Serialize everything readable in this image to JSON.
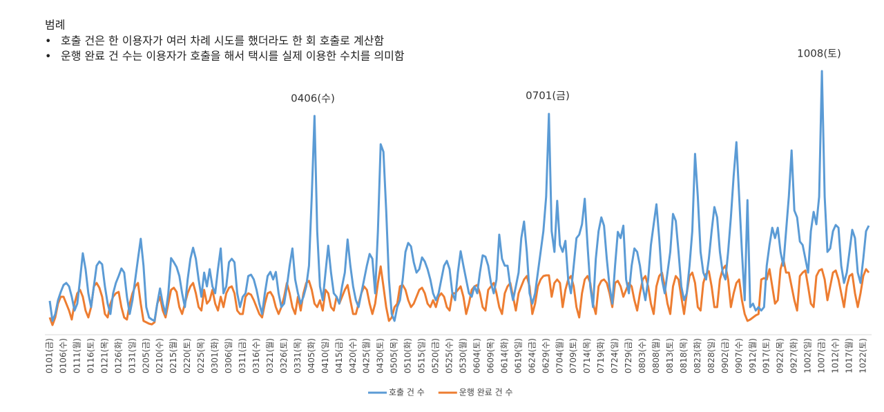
{
  "legend_notes": {
    "title": "범례",
    "items": [
      "호출 건은 한 이용자가 여러 차례 시도를 했더라도 한 회 호출로 계산함",
      "운행 완료 건 수는 이용자가 호출을 해서 택시를 실제 이용한 수치를 의미함"
    ]
  },
  "chart_data": {
    "type": "line",
    "annotations": [
      "0406(수)",
      "0701(금)",
      "1008(토)"
    ],
    "ylim": [
      0,
      400
    ],
    "categories": [
      "0101(금)",
      null,
      null,
      null,
      null,
      "0106(수)",
      null,
      null,
      null,
      null,
      "0111(월)",
      null,
      null,
      null,
      null,
      "0116(토)",
      null,
      null,
      null,
      null,
      "0121(목)",
      null,
      null,
      null,
      null,
      "0126(화)",
      null,
      null,
      null,
      null,
      "0131(일)",
      null,
      null,
      null,
      null,
      "0205(금)",
      null,
      null,
      null,
      null,
      "0210(수)",
      null,
      null,
      null,
      null,
      "0215(월)",
      null,
      null,
      null,
      null,
      "0220(토)",
      null,
      null,
      null,
      null,
      "0225(목)",
      null,
      null,
      null,
      null,
      "0301(화)",
      null,
      null,
      null,
      null,
      "0306(일)",
      null,
      null,
      null,
      null,
      "0311(금)",
      null,
      null,
      null,
      null,
      "0316(수)",
      null,
      null,
      null,
      null,
      "0321(월)",
      null,
      null,
      null,
      null,
      "0326(토)",
      null,
      null,
      null,
      null,
      "0331(목)",
      null,
      null,
      null,
      null,
      "0405(화)",
      null,
      null,
      null,
      null,
      "0410(일)",
      null,
      null,
      null,
      null,
      "0415(금)",
      null,
      null,
      null,
      null,
      "0420(수)",
      null,
      null,
      null,
      null,
      "0425(월)",
      null,
      null,
      null,
      null,
      "0430(토)",
      null,
      null,
      null,
      null,
      "0505(목)",
      null,
      null,
      null,
      null,
      "0510(화)",
      null,
      null,
      null,
      null,
      "0515(일)",
      null,
      null,
      null,
      null,
      "0520(금)",
      null,
      null,
      null,
      null,
      "0525(수)",
      null,
      null,
      null,
      null,
      "0530(월)",
      null,
      null,
      null,
      null,
      "0604(토)",
      null,
      null,
      null,
      null,
      "0609(목)",
      null,
      null,
      null,
      null,
      "0614(화)",
      null,
      null,
      null,
      null,
      "0619(일)",
      null,
      null,
      null,
      null,
      "0624(금)",
      null,
      null,
      null,
      null,
      "0629(수)",
      null,
      null,
      null,
      null,
      "0704(월)",
      null,
      null,
      null,
      null,
      "0709(토)",
      null,
      null,
      null,
      null,
      "0714(목)",
      null,
      null,
      null,
      null,
      "0719(화)",
      null,
      null,
      null,
      null,
      "0724(일)",
      null,
      null,
      null,
      null,
      "0729(금)",
      null,
      null,
      null,
      null,
      "0803(수)",
      null,
      null,
      null,
      null,
      "0808(월)",
      null,
      null,
      null,
      null,
      "0813(토)",
      null,
      null,
      null,
      null,
      "0818(목)",
      null,
      null,
      null,
      null,
      "0823(화)",
      null,
      null,
      null,
      null,
      "0828(일)",
      null,
      null,
      null,
      null,
      "0902(금)",
      null,
      null,
      null,
      null,
      "0907(수)",
      null,
      null,
      null,
      null,
      "0912(월)",
      null,
      null,
      null,
      null,
      "0917(토)",
      null,
      null,
      null,
      null,
      "0922(목)",
      null,
      null,
      null,
      null,
      "0927(화)",
      null,
      null,
      null,
      null,
      "1002(일)",
      null,
      null,
      null,
      null,
      "1007(금)",
      null,
      null,
      null,
      null,
      "1012(수)",
      null,
      null,
      null,
      null,
      "1017(월)",
      null,
      null,
      null,
      null,
      "1022(토)",
      null,
      null
    ],
    "series": [
      {
        "name": "호출 건 수",
        "color": "#5b9bd5",
        "values": [
          49,
          20,
          30,
          50,
          62,
          72,
          75,
          70,
          55,
          35,
          45,
          80,
          118,
          95,
          60,
          40,
          70,
          100,
          106,
          102,
          70,
          45,
          30,
          60,
          75,
          85,
          96,
          90,
          55,
          30,
          50,
          80,
          110,
          139,
          100,
          40,
          25,
          22,
          20,
          45,
          67,
          45,
          30,
          60,
          111,
          105,
          98,
          85,
          60,
          40,
          80,
          110,
          126,
          110,
          80,
          55,
          90,
          70,
          95,
          70,
          60,
          95,
          125,
          60,
          70,
          105,
          110,
          105,
          60,
          40,
          55,
          60,
          85,
          87,
          80,
          65,
          45,
          30,
          60,
          85,
          91,
          80,
          91,
          60,
          40,
          45,
          70,
          100,
          125,
          80,
          60,
          45,
          55,
          70,
          100,
          200,
          317,
          150,
          70,
          50,
          90,
          129,
          90,
          60,
          55,
          45,
          70,
          90,
          138,
          100,
          70,
          50,
          40,
          60,
          80,
          100,
          117,
          110,
          60,
          150,
          276,
          265,
          180,
          80,
          30,
          20,
          40,
          50,
          80,
          120,
          133,
          128,
          105,
          90,
          95,
          112,
          106,
          95,
          80,
          60,
          50,
          60,
          80,
          100,
          107,
          95,
          60,
          50,
          90,
          121,
          100,
          80,
          60,
          55,
          70,
          60,
          90,
          115,
          113,
          100,
          75,
          60,
          80,
          145,
          110,
          100,
          100,
          70,
          50,
          70,
          90,
          140,
          164,
          120,
          60,
          45,
          60,
          90,
          120,
          150,
          200,
          320,
          150,
          120,
          194,
          130,
          120,
          136,
          80,
          60,
          100,
          140,
          145,
          160,
          197,
          130,
          70,
          40,
          110,
          150,
          170,
          158,
          110,
          70,
          45,
          100,
          149,
          140,
          158,
          80,
          60,
          100,
          125,
          120,
          100,
          70,
          50,
          80,
          130,
          160,
          189,
          140,
          80,
          60,
          90,
          120,
          175,
          165,
          120,
          70,
          50,
          60,
          100,
          150,
          262,
          200,
          120,
          90,
          80,
          110,
          150,
          185,
          170,
          120,
          90,
          80,
          120,
          170,
          230,
          279,
          200,
          120,
          50,
          195,
          40,
          45,
          35,
          40,
          35,
          40,
          100,
          130,
          155,
          140,
          155,
          120,
          100,
          150,
          200,
          267,
          180,
          170,
          135,
          130,
          110,
          90,
          150,
          178,
          160,
          200,
          382,
          200,
          120,
          125,
          150,
          159,
          155,
          100,
          75,
          90,
          120,
          152,
          140,
          90,
          75,
          110,
          150,
          158
        ]
      },
      {
        "name": "운행 완료 건 수",
        "color": "#ed7d31",
        "values": [
          25,
          14,
          25,
          45,
          55,
          55,
          45,
          35,
          22,
          45,
          60,
          65,
          55,
          35,
          25,
          40,
          70,
          75,
          68,
          55,
          30,
          25,
          45,
          55,
          60,
          62,
          40,
          25,
          22,
          45,
          60,
          70,
          75,
          45,
          20,
          18,
          16,
          15,
          18,
          45,
          55,
          35,
          25,
          45,
          65,
          68,
          62,
          40,
          30,
          45,
          60,
          70,
          75,
          60,
          40,
          35,
          65,
          45,
          50,
          65,
          45,
          35,
          55,
          40,
          60,
          68,
          70,
          60,
          35,
          30,
          30,
          55,
          60,
          58,
          50,
          40,
          30,
          25,
          45,
          60,
          62,
          55,
          40,
          30,
          40,
          55,
          75,
          60,
          40,
          30,
          55,
          35,
          60,
          75,
          78,
          65,
          45,
          40,
          50,
          35,
          65,
          60,
          40,
          35,
          55,
          45,
          55,
          65,
          72,
          50,
          30,
          30,
          45,
          60,
          70,
          65,
          45,
          30,
          45,
          75,
          99,
          70,
          40,
          20,
          25,
          40,
          45,
          70,
          72,
          65,
          50,
          40,
          45,
          55,
          65,
          68,
          60,
          45,
          40,
          50,
          40,
          55,
          60,
          55,
          40,
          35,
          60,
          60,
          65,
          70,
          55,
          30,
          45,
          65,
          70,
          72,
          60,
          40,
          35,
          65,
          70,
          75,
          60,
          40,
          30,
          60,
          70,
          75,
          55,
          35,
          60,
          70,
          80,
          85,
          70,
          30,
          45,
          70,
          80,
          85,
          86,
          86,
          55,
          75,
          80,
          75,
          40,
          65,
          80,
          85,
          70,
          40,
          25,
          60,
          80,
          85,
          75,
          45,
          30,
          70,
          78,
          80,
          75,
          60,
          40,
          75,
          78,
          70,
          55,
          65,
          75,
          70,
          50,
          35,
          60,
          80,
          85,
          70,
          45,
          30,
          70,
          85,
          90,
          70,
          45,
          30,
          70,
          85,
          80,
          55,
          30,
          60,
          85,
          90,
          75,
          40,
          35,
          75,
          88,
          92,
          70,
          40,
          40,
          80,
          95,
          100,
          80,
          40,
          60,
          75,
          80,
          50,
          30,
          20,
          22,
          25,
          28,
          30,
          80,
          82,
          80,
          95,
          70,
          45,
          50,
          95,
          110,
          90,
          90,
          70,
          50,
          35,
          85,
          90,
          93,
          70,
          45,
          40,
          85,
          93,
          95,
          80,
          50,
          70,
          90,
          93,
          80,
          60,
          40,
          70,
          85,
          88,
          60,
          40,
          60,
          85,
          95,
          90
        ]
      }
    ]
  }
}
